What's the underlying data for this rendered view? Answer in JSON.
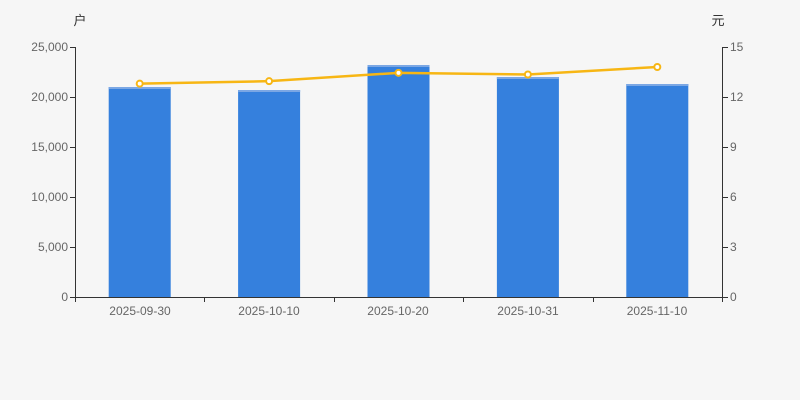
{
  "chart_data": {
    "type": "bar",
    "title": "",
    "categories": [
      "2025-09-30",
      "2025-10-10",
      "2025-10-20",
      "2025-10-31",
      "2025-11-10"
    ],
    "series": [
      {
        "name": "holder-count-bars",
        "type": "bar",
        "axis": "left",
        "values": [
          21000,
          20700,
          23200,
          22000,
          21300
        ]
      },
      {
        "name": "price-line",
        "type": "line",
        "axis": "right",
        "values": [
          12.8,
          12.95,
          13.45,
          13.35,
          13.8
        ]
      }
    ],
    "left_axis": {
      "label": "户",
      "range": [
        0,
        25000
      ],
      "ticks": [
        0,
        5000,
        10000,
        15000,
        20000,
        25000
      ],
      "tick_labels_top_down": [
        "25,000",
        "20,000",
        "15,000",
        "10,000",
        "5,000",
        "0"
      ]
    },
    "right_axis": {
      "label": "元",
      "range": [
        0,
        15
      ],
      "ticks": [
        0,
        3,
        6,
        9,
        12,
        15
      ],
      "tick_labels_top_down": [
        "15",
        "12",
        "9",
        "6",
        "3",
        "0"
      ]
    },
    "grid": false,
    "legend": "none",
    "colors": {
      "background": "#f6f6f6",
      "bar": "#3580dd",
      "bar_top_edge": "#7ba7e4",
      "line": "#f7b614",
      "marker_fill": "#ffffff",
      "axis_line": "#333333",
      "tick_text": "#666666",
      "unit_text": "#333333"
    }
  }
}
